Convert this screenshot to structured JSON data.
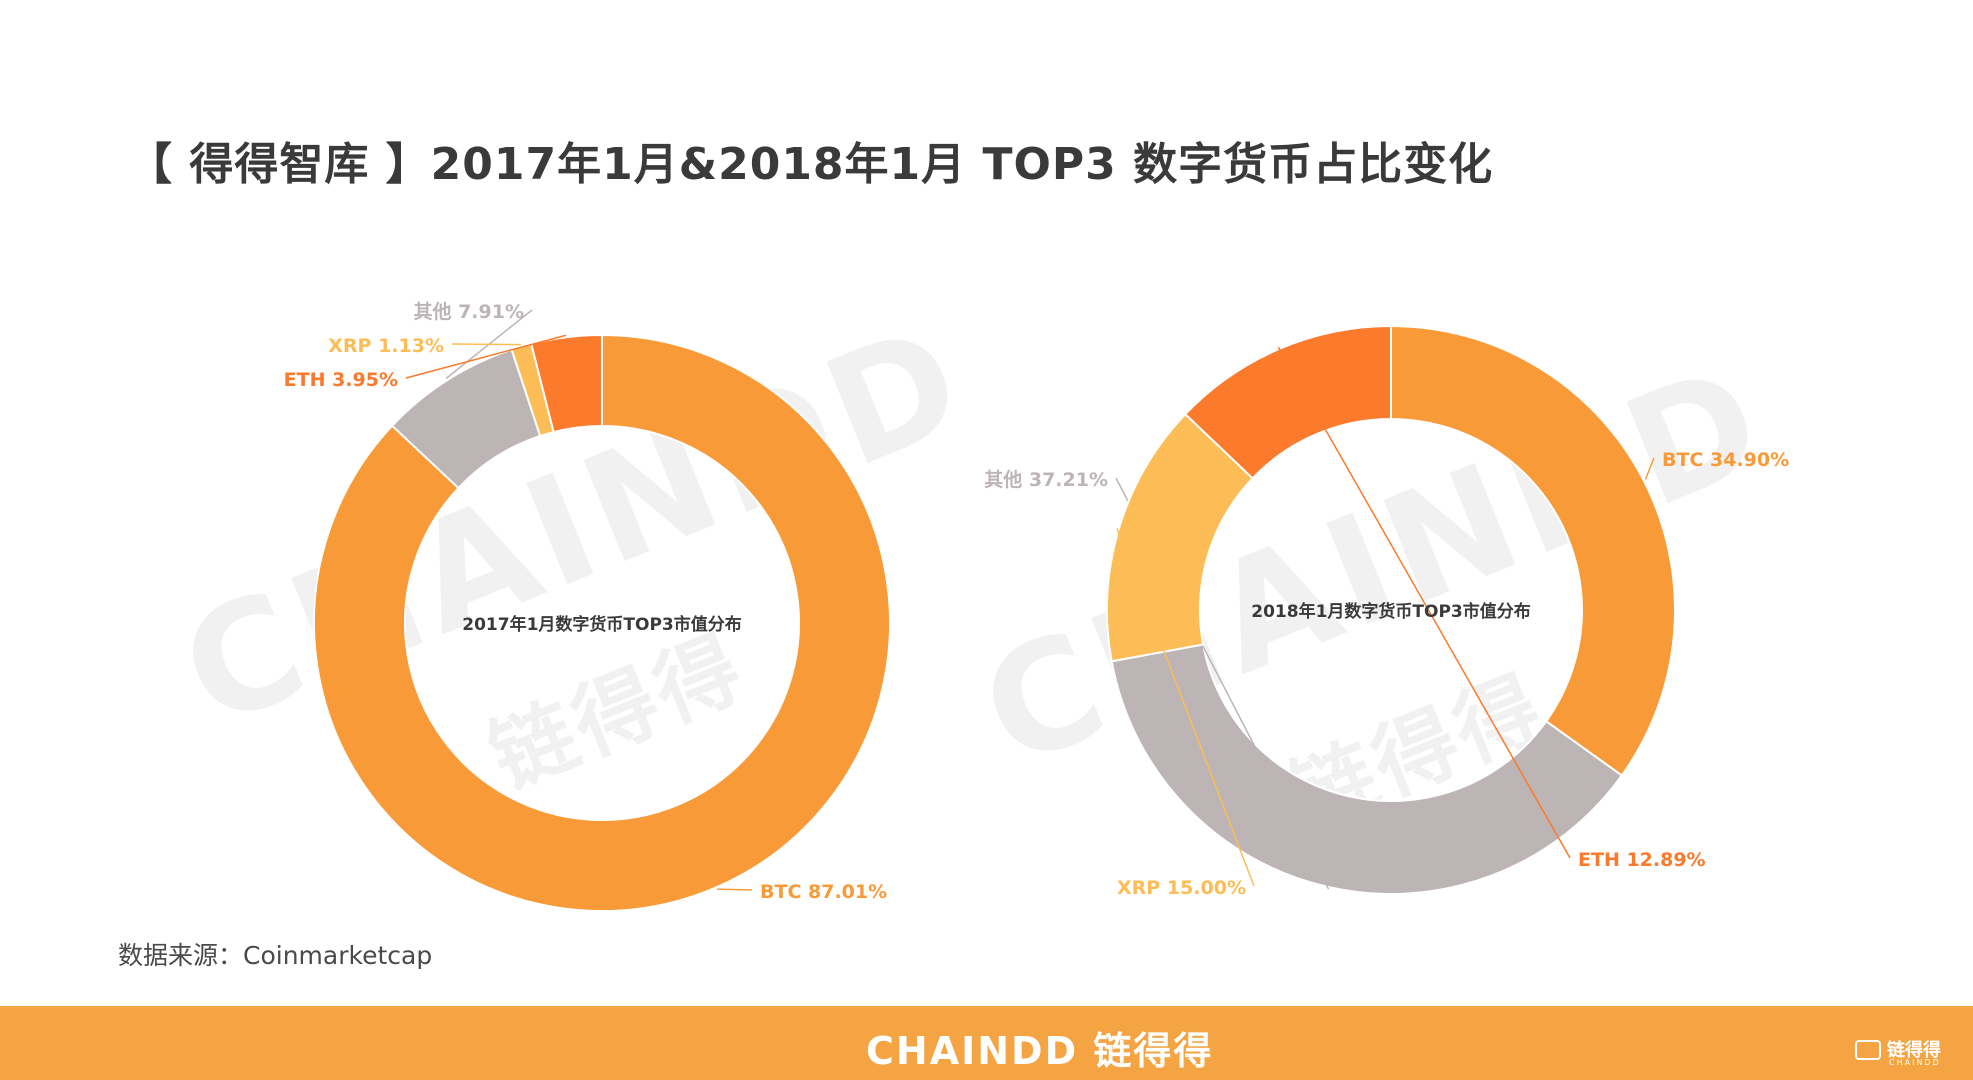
{
  "page": {
    "title": "【 得得智库 】2017年1月&2018年1月 TOP3 数字货币占比变化",
    "source": "数据来源：Coinmarketcap",
    "footer_logo": "CHAINDD 链得得",
    "watermark_latin": "CHAINDD",
    "watermark_cn": "链得得",
    "corner_logo": "链得得",
    "corner_logo_sub": "CHAINDD"
  },
  "colors": {
    "BTC": "#f99a38",
    "ETH": "#fb7a2c",
    "XRP": "#fdbd56",
    "其他": "#bdb5b5",
    "footer": "#f5a443"
  },
  "chart_data": [
    {
      "type": "pie",
      "donut": true,
      "center_label": "2017年1月数字货币TOP3市值分布",
      "slices": [
        {
          "name": "BTC",
          "value": 87.01,
          "label": "BTC 87.01%"
        },
        {
          "name": "ETH",
          "value": 3.95,
          "label": "ETH 3.95%"
        },
        {
          "name": "XRP",
          "value": 1.13,
          "label": "XRP 1.13%"
        },
        {
          "name": "其他",
          "value": 7.91,
          "label": "其他 7.91%"
        }
      ]
    },
    {
      "type": "pie",
      "donut": true,
      "center_label": "2018年1月数字货币TOP3市值分布",
      "slices": [
        {
          "name": "BTC",
          "value": 34.9,
          "label": "BTC 34.90%"
        },
        {
          "name": "ETH",
          "value": 12.89,
          "label": "ETH 12.89%"
        },
        {
          "name": "XRP",
          "value": 15.0,
          "label": "XRP 15.00%"
        },
        {
          "name": "其他",
          "value": 37.21,
          "label": "其他 37.21%"
        }
      ]
    }
  ]
}
